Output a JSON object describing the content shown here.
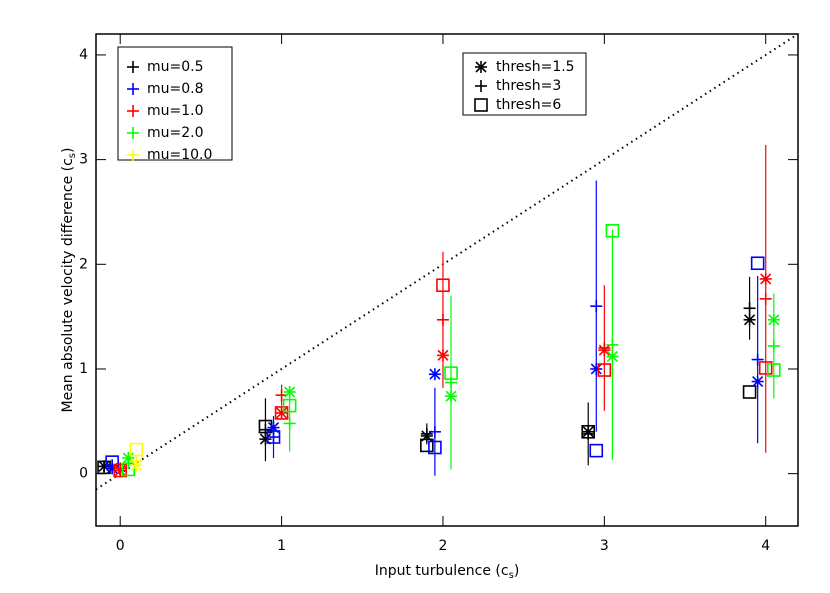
{
  "chart_data": {
    "type": "scatter",
    "xlabel": {
      "text": "Input turbulence (c",
      "sub": "s",
      "end": ")"
    },
    "ylabel": {
      "text": "Mean absolute velocity difference (c",
      "sub": "s",
      "end": ")"
    },
    "xlim": [
      -0.15,
      4.2
    ],
    "ylim": [
      -0.5,
      4.2
    ],
    "xticks": [
      0,
      1,
      2,
      3,
      4
    ],
    "yticks": [
      0,
      1,
      2,
      3,
      4
    ],
    "marker_legend": [
      {
        "name": "thresh=1.5",
        "marker": "asterisk"
      },
      {
        "name": "thresh=3",
        "marker": "plus"
      },
      {
        "name": "thresh=6",
        "marker": "square"
      }
    ],
    "series": [
      {
        "name": "mu=0.5",
        "color": "#000000",
        "groups": [
          {
            "marker": "asterisk",
            "x": [
              -0.1,
              0.9,
              1.9,
              2.9,
              3.9
            ],
            "values": [
              0.07,
              0.33,
              0.36,
              0.4,
              1.47
            ]
          },
          {
            "marker": "plus",
            "x": [
              -0.1,
              0.9,
              1.9,
              2.9,
              3.9
            ],
            "values": [
              0.07,
              0.42,
              0.38,
              0.38,
              1.58
            ],
            "errors": [
              0.05,
              0.3,
              0.1,
              0.3,
              0.3
            ]
          },
          {
            "marker": "square",
            "x": [
              -0.1,
              0.9,
              1.9,
              2.9,
              3.9
            ],
            "values": [
              0.06,
              0.45,
              0.27,
              0.4,
              0.78
            ]
          }
        ]
      },
      {
        "name": "mu=0.8",
        "color": "#0000ff",
        "groups": [
          {
            "marker": "asterisk",
            "x": [
              -0.05,
              0.95,
              1.95,
              2.95,
              3.95
            ],
            "values": [
              0.05,
              0.44,
              0.95,
              1.0,
              0.88
            ]
          },
          {
            "marker": "plus",
            "x": [
              -0.05,
              0.95,
              1.95,
              2.95,
              3.95
            ],
            "values": [
              0.08,
              0.35,
              0.4,
              1.6,
              1.09
            ],
            "errors": [
              0.05,
              0.2,
              0.42,
              1.2,
              0.8
            ]
          },
          {
            "marker": "square",
            "x": [
              -0.05,
              0.95,
              1.95,
              2.95,
              3.95
            ],
            "values": [
              0.11,
              0.35,
              0.25,
              0.22,
              2.01
            ]
          }
        ]
      },
      {
        "name": "mu=1.0",
        "color": "#ff0000",
        "groups": [
          {
            "marker": "asterisk",
            "x": [
              0,
              1,
              2,
              3,
              4
            ],
            "values": [
              0.03,
              0.58,
              1.13,
              1.18,
              1.86
            ]
          },
          {
            "marker": "plus",
            "x": [
              0,
              1,
              2,
              3,
              4
            ],
            "values": [
              0.05,
              0.75,
              1.47,
              1.2,
              1.67
            ],
            "errors": [
              0.03,
              0.1,
              0.65,
              0.6,
              1.47
            ]
          },
          {
            "marker": "square",
            "x": [
              0,
              1,
              2,
              3,
              4
            ],
            "values": [
              0.03,
              0.58,
              1.8,
              0.99,
              1.01
            ]
          }
        ]
      },
      {
        "name": "mu=2.0",
        "color": "#00ff00",
        "groups": [
          {
            "marker": "asterisk",
            "x": [
              0.05,
              1.05,
              2.05,
              3.05,
              4.05
            ],
            "values": [
              0.15,
              0.78,
              0.74,
              1.12,
              1.47
            ]
          },
          {
            "marker": "plus",
            "x": [
              0.05,
              1.05,
              2.05,
              3.05,
              4.05
            ],
            "values": [
              0.1,
              0.48,
              0.87,
              1.23,
              1.22
            ],
            "errors": [
              0.05,
              0.27,
              0.83,
              1.1,
              0.5
            ]
          },
          {
            "marker": "square",
            "x": [
              0.05,
              1.05,
              2.05,
              3.05,
              4.05
            ],
            "values": [
              0.04,
              0.65,
              0.96,
              2.32,
              0.99
            ]
          }
        ]
      },
      {
        "name": "mu=10.0",
        "color": "#ffff00",
        "groups": [
          {
            "marker": "asterisk",
            "x": [
              0.1
            ],
            "values": [
              0.08
            ]
          },
          {
            "marker": "plus",
            "x": [
              0.1
            ],
            "values": [
              0.12
            ],
            "errors": [
              0.05
            ]
          },
          {
            "marker": "square",
            "x": [
              0.1
            ],
            "values": [
              0.23
            ]
          }
        ]
      }
    ]
  }
}
